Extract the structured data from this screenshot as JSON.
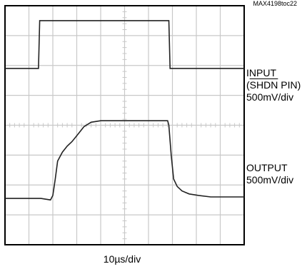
{
  "figure_id": "MAX4198toc22",
  "chart_data": {
    "type": "line",
    "title": "",
    "grid": true,
    "grid_divisions": {
      "x": 10,
      "y": 8
    },
    "xlabel": "10µs/div",
    "x_unit": "div",
    "xlim": [
      0,
      10
    ],
    "ylim": [
      0,
      8
    ],
    "series": [
      {
        "name": "INPUT (SHDN PIN)",
        "label_lines": [
          "INPUT",
          "(",
          "SHDN",
          " PIN)"
        ],
        "scale": "500mV/div",
        "x": [
          0,
          1.4,
          1.45,
          6.85,
          6.9,
          10
        ],
        "y": [
          5.9,
          5.9,
          7.5,
          7.5,
          5.9,
          5.9
        ]
      },
      {
        "name": "OUTPUT",
        "label_lines": [
          "OUTPUT"
        ],
        "scale": "500mV/div",
        "x": [
          0,
          1.5,
          1.9,
          2.0,
          2.1,
          2.2,
          2.4,
          2.6,
          2.8,
          3.0,
          3.3,
          3.6,
          4.0,
          6.8,
          6.85,
          6.95,
          7.05,
          7.2,
          7.4,
          7.7,
          8.1,
          8.6,
          10
        ],
        "y": [
          1.55,
          1.55,
          1.5,
          1.65,
          2.2,
          2.8,
          3.1,
          3.3,
          3.45,
          3.65,
          3.95,
          4.1,
          4.15,
          4.15,
          4.0,
          3.0,
          2.2,
          1.95,
          1.8,
          1.7,
          1.65,
          1.6,
          1.6
        ]
      }
    ]
  }
}
